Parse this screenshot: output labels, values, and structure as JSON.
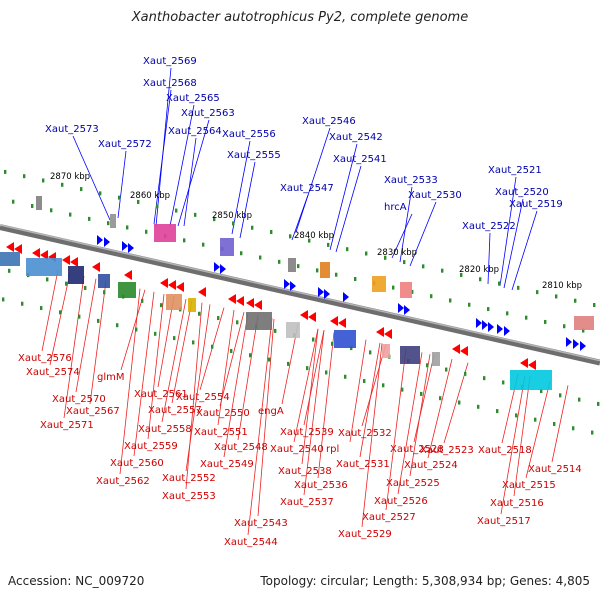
{
  "title": "Xanthobacter autotrophicus Py2, complete genome",
  "footer": {
    "accession": "Accession: NC_009720",
    "topology": "Topology: circular; Length: 5,308,934 bp; Genes: 4,805"
  },
  "colors": {
    "forward": "#0000ff",
    "reverse": "#ff0000",
    "label_forward": "#00008b",
    "label_reverse": "#cc0000",
    "backbone": "#808080",
    "tick": "#2e8b2e"
  },
  "kbp_ticks": [
    "2870 kbp",
    "2860 kbp",
    "2850 kbp",
    "2840 kbp",
    "2830 kbp",
    "2820 kbp",
    "2810 kbp"
  ],
  "upper_labels": [
    "Xaut_2569",
    "Xaut_2568",
    "Xaut_2565",
    "Xaut_2563",
    "Xaut_2573",
    "Xaut_2564",
    "Xaut_2556",
    "Xaut_2546",
    "Xaut_2542",
    "Xaut_2572",
    "Xaut_2555",
    "Xaut_2541",
    "Xaut_2521",
    "Xaut_2533",
    "Xaut_2547",
    "Xaut_2520",
    "Xaut_2530",
    "Xaut_2519",
    "hrcA",
    "Xaut_2522"
  ],
  "lower_labels": [
    "Xaut_2576",
    "Xaut_2574",
    "glmM",
    "Xaut_2561",
    "Xaut_2570",
    "Xaut_2554",
    "Xaut_2567",
    "Xaut_2557",
    "Xaut_2550",
    "engA",
    "Xaut_2571",
    "Xaut_2558",
    "Xaut_2551",
    "Xaut_2539",
    "Xaut_2532",
    "Xaut_2559",
    "Xaut_2548",
    "Xaut_2540",
    "rpl",
    "Xaut_2528",
    "Xaut_2523",
    "Xaut_2518",
    "Xaut_2560",
    "Xaut_2549",
    "Xaut_2538",
    "Xaut_2531",
    "Xaut_2524",
    "Xaut_2514",
    "Xaut_2562",
    "Xaut_2552",
    "Xaut_2536",
    "Xaut_2525",
    "Xaut_2515",
    "Xaut_2553",
    "Xaut_2537",
    "Xaut_2526",
    "Xaut_2516",
    "Xaut_2527",
    "Xaut_2517",
    "Xaut_2543",
    "Xaut_2529",
    "Xaut_2544"
  ]
}
